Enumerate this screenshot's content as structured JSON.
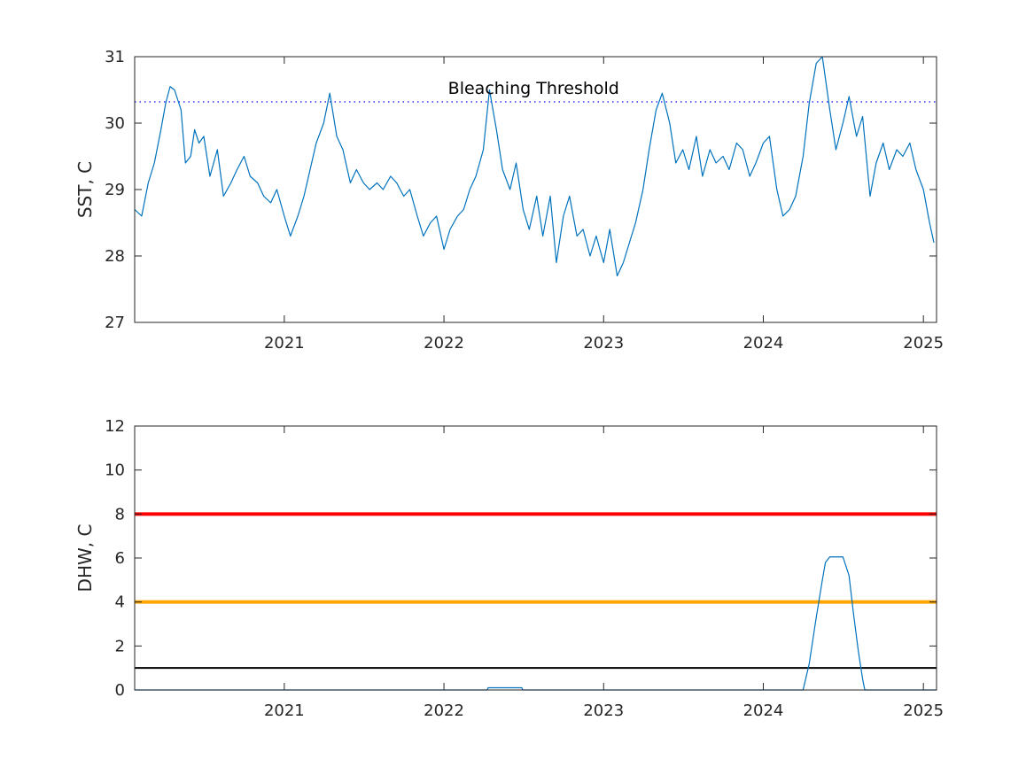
{
  "chart_data": [
    {
      "type": "line",
      "title": "",
      "xlabel": "",
      "ylabel": "SST, C",
      "xlim": [
        "2020-01-25",
        "2025-01-31"
      ],
      "ylim": [
        27,
        31
      ],
      "xticks": [
        "2021",
        "2022",
        "2023",
        "2024",
        "2025"
      ],
      "yticks": [
        "27",
        "28",
        "29",
        "30",
        "31"
      ],
      "grid": false,
      "threshold_line": {
        "value": 30.32,
        "style": "dotted",
        "color": "#0000FF"
      },
      "annotations": [
        {
          "text": "Bleaching Threshold",
          "x": "2022-07-25",
          "y": 30.52
        }
      ],
      "series": [
        {
          "color": "#0072BD",
          "x": [
            "2020-01-25",
            "2020-02-10",
            "2020-02-25",
            "2020-03-10",
            "2020-03-25",
            "2020-04-05",
            "2020-04-15",
            "2020-04-25",
            "2020-05-10",
            "2020-05-20",
            "2020-06-01",
            "2020-06-10",
            "2020-06-20",
            "2020-07-01",
            "2020-07-15",
            "2020-08-01",
            "2020-08-15",
            "2020-09-01",
            "2020-09-15",
            "2020-10-01",
            "2020-10-15",
            "2020-11-01",
            "2020-11-15",
            "2020-12-01",
            "2020-12-15",
            "2021-01-01",
            "2021-01-15",
            "2021-02-01",
            "2021-02-15",
            "2021-03-01",
            "2021-03-15",
            "2021-04-01",
            "2021-04-15",
            "2021-05-01",
            "2021-05-15",
            "2021-06-01",
            "2021-06-15",
            "2021-07-01",
            "2021-07-15",
            "2021-08-01",
            "2021-08-15",
            "2021-09-01",
            "2021-09-15",
            "2021-10-01",
            "2021-10-15",
            "2021-11-01",
            "2021-11-15",
            "2021-12-01",
            "2021-12-15",
            "2022-01-01",
            "2022-01-15",
            "2022-02-01",
            "2022-02-15",
            "2022-03-01",
            "2022-03-15",
            "2022-04-01",
            "2022-04-15",
            "2022-05-01",
            "2022-05-15",
            "2022-06-01",
            "2022-06-15",
            "2022-07-01",
            "2022-07-15",
            "2022-08-01",
            "2022-08-15",
            "2022-09-01",
            "2022-09-15",
            "2022-10-01",
            "2022-10-15",
            "2022-11-01",
            "2022-11-15",
            "2022-12-01",
            "2022-12-15",
            "2023-01-01",
            "2023-01-15",
            "2023-02-01",
            "2023-02-15",
            "2023-03-01",
            "2023-03-15",
            "2023-04-01",
            "2023-04-15",
            "2023-05-01",
            "2023-05-15",
            "2023-06-01",
            "2023-06-15",
            "2023-07-01",
            "2023-07-15",
            "2023-08-01",
            "2023-08-15",
            "2023-09-01",
            "2023-09-15",
            "2023-10-01",
            "2023-10-15",
            "2023-11-01",
            "2023-11-15",
            "2023-12-01",
            "2023-12-15",
            "2024-01-01",
            "2024-01-15",
            "2024-02-01",
            "2024-02-15",
            "2024-03-01",
            "2024-03-15",
            "2024-04-01",
            "2024-04-15",
            "2024-05-01",
            "2024-05-15",
            "2024-06-01",
            "2024-06-15",
            "2024-07-01",
            "2024-07-15",
            "2024-08-01",
            "2024-08-15",
            "2024-09-01",
            "2024-09-15",
            "2024-10-01",
            "2024-10-15",
            "2024-11-01",
            "2024-11-15",
            "2024-12-01",
            "2024-12-15",
            "2025-01-01",
            "2025-01-15",
            "2025-01-25"
          ],
          "y": [
            28.7,
            28.6,
            29.1,
            29.4,
            29.9,
            30.3,
            30.55,
            30.5,
            30.2,
            29.4,
            29.5,
            29.9,
            29.7,
            29.8,
            29.2,
            29.6,
            28.9,
            29.1,
            29.3,
            29.5,
            29.2,
            29.1,
            28.9,
            28.8,
            29.0,
            28.6,
            28.3,
            28.6,
            28.9,
            29.3,
            29.7,
            30.0,
            30.45,
            29.8,
            29.6,
            29.1,
            29.3,
            29.1,
            29.0,
            29.1,
            29.0,
            29.2,
            29.1,
            28.9,
            29.0,
            28.6,
            28.3,
            28.5,
            28.6,
            28.1,
            28.4,
            28.6,
            28.7,
            29.0,
            29.2,
            29.6,
            30.5,
            29.9,
            29.3,
            29.0,
            29.4,
            28.7,
            28.4,
            28.9,
            28.3,
            28.9,
            27.9,
            28.6,
            28.9,
            28.3,
            28.4,
            28.0,
            28.3,
            27.9,
            28.4,
            27.7,
            27.9,
            28.2,
            28.5,
            29.0,
            29.6,
            30.2,
            30.45,
            30.0,
            29.4,
            29.6,
            29.3,
            29.8,
            29.2,
            29.6,
            29.4,
            29.5,
            29.3,
            29.7,
            29.6,
            29.2,
            29.4,
            29.7,
            29.8,
            29.0,
            28.6,
            28.7,
            28.9,
            29.5,
            30.3,
            30.9,
            31.0,
            30.2,
            29.6,
            30.0,
            30.4,
            29.8,
            30.1,
            28.9,
            29.4,
            29.7,
            29.3,
            29.6,
            29.5,
            29.7,
            29.3,
            29.0,
            28.5,
            28.2
          ]
        }
      ]
    },
    {
      "type": "line",
      "title": "",
      "xlabel": "",
      "ylabel": "DHW, C",
      "xlim": [
        "2020-01-25",
        "2025-01-31"
      ],
      "ylim": [
        0,
        12
      ],
      "xticks": [
        "2021",
        "2022",
        "2023",
        "2024",
        "2025"
      ],
      "yticks": [
        "0",
        "2",
        "4",
        "6",
        "8",
        "10",
        "12"
      ],
      "grid": false,
      "reference_lines": [
        {
          "value": 8,
          "color": "#FF0000"
        },
        {
          "value": 4,
          "color": "#FFA500"
        },
        {
          "value": 1,
          "color": "#000000"
        }
      ],
      "series": [
        {
          "color": "#0072BD",
          "x": [
            "2020-01-25",
            "2022-04-10",
            "2022-04-12",
            "2022-06-28",
            "2022-06-30",
            "2024-04-01",
            "2024-04-15",
            "2024-05-01",
            "2024-05-15",
            "2024-05-22",
            "2024-06-01",
            "2024-06-15",
            "2024-07-01",
            "2024-07-15",
            "2024-07-25",
            "2024-08-05",
            "2024-08-15",
            "2024-08-20",
            "2025-01-31"
          ],
          "y": [
            0,
            0,
            0.1,
            0.1,
            0,
            0,
            1.2,
            3.3,
            5.0,
            5.8,
            6.05,
            6.05,
            6.05,
            5.2,
            3.5,
            1.8,
            0.5,
            0,
            0
          ]
        }
      ]
    }
  ]
}
